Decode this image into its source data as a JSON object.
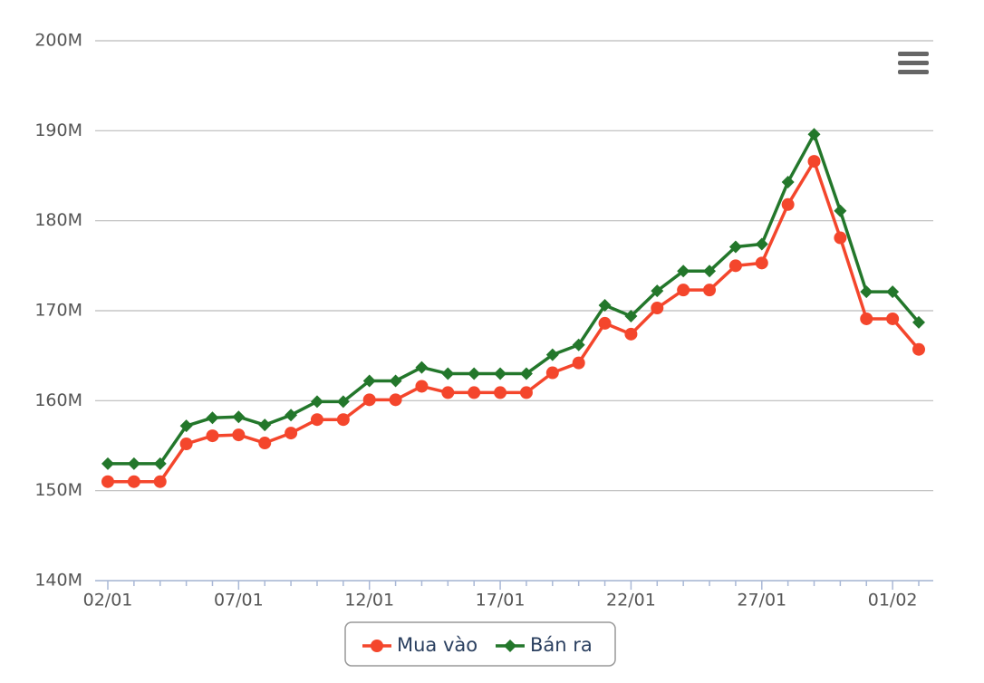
{
  "chart_data": {
    "type": "line",
    "categories": [
      "02/01",
      null,
      null,
      null,
      null,
      "07/01",
      null,
      null,
      null,
      null,
      "12/01",
      null,
      null,
      null,
      null,
      "17/01",
      null,
      null,
      null,
      null,
      "22/01",
      null,
      null,
      null,
      null,
      "27/01",
      null,
      null,
      null,
      null,
      "01/02",
      null
    ],
    "series": [
      {
        "name": "Mua vào",
        "color": "#f4462c",
        "marker": "circle",
        "values": [
          151000000,
          151000000,
          151000000,
          155200000,
          156100000,
          156200000,
          155300000,
          156400000,
          157900000,
          157900000,
          160100000,
          160100000,
          161600000,
          160900000,
          160900000,
          160900000,
          160900000,
          163100000,
          164200000,
          168600000,
          167400000,
          170300000,
          172300000,
          172300000,
          175000000,
          175300000,
          181800000,
          186600000,
          178100000,
          169100000,
          169100000,
          165700000
        ]
      },
      {
        "name": "Bán ra",
        "color": "#23772b",
        "marker": "diamond",
        "values": [
          153000000,
          153000000,
          153000000,
          157200000,
          158100000,
          158200000,
          157300000,
          158400000,
          159900000,
          159900000,
          162200000,
          162200000,
          163700000,
          163000000,
          163000000,
          163000000,
          163000000,
          165100000,
          166200000,
          170600000,
          169400000,
          172200000,
          174400000,
          174400000,
          177100000,
          177400000,
          184300000,
          189600000,
          181100000,
          172100000,
          172100000,
          168700000
        ]
      }
    ],
    "ylim": [
      140000000,
      200000000
    ],
    "yticks": [
      {
        "value": 140000000,
        "label": "140M"
      },
      {
        "value": 150000000,
        "label": "150M"
      },
      {
        "value": 160000000,
        "label": "160M"
      },
      {
        "value": 170000000,
        "label": "170M"
      },
      {
        "value": 180000000,
        "label": "180M"
      },
      {
        "value": 190000000,
        "label": "190M"
      },
      {
        "value": 200000000,
        "label": "200M"
      }
    ],
    "grid": true
  }
}
